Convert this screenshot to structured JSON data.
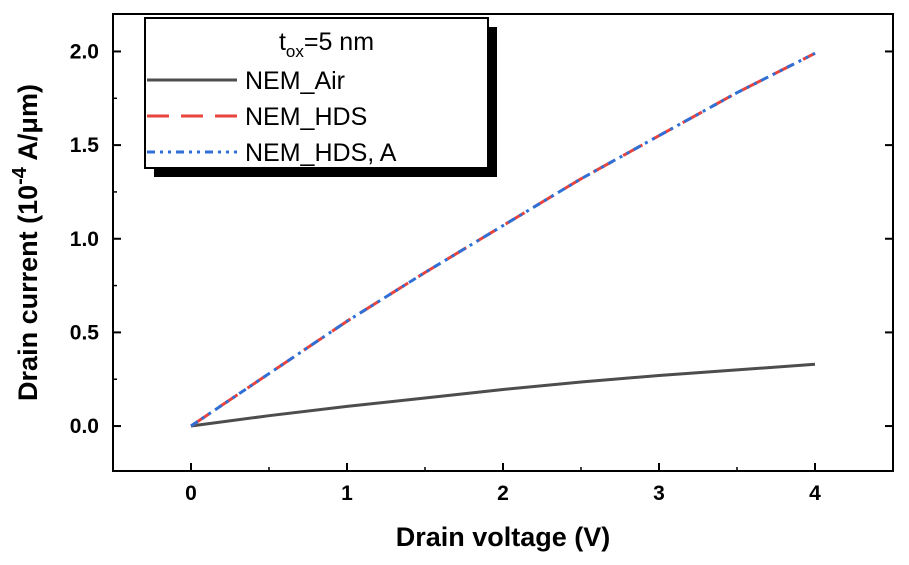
{
  "chart_data": {
    "type": "line",
    "xlabel": "Drain voltage (V)",
    "ylabel": {
      "prefix": "Drain current (10",
      "exponent": "-4",
      "suffix": " A/μm)"
    },
    "xlim": [
      -0.5,
      4.5
    ],
    "ylim": [
      -0.24,
      2.2
    ],
    "xticks": [
      "0",
      "1",
      "2",
      "3",
      "4"
    ],
    "yticks": [
      "0.0",
      "0.5",
      "1.0",
      "1.5",
      "2.0"
    ],
    "legend": {
      "title_base": "t",
      "title_sub": "ox",
      "title_rest": "=5 nm",
      "placement": "top-left"
    },
    "series": [
      {
        "name": "NEM_Air",
        "color": "#4d4d4d",
        "style": "solid",
        "x": [
          0,
          0.5,
          1,
          1.5,
          2,
          2.5,
          3,
          3.5,
          4
        ],
        "y": [
          0,
          0.055,
          0.105,
          0.15,
          0.195,
          0.235,
          0.27,
          0.3,
          0.33
        ]
      },
      {
        "name": "NEM_HDS",
        "color": "#e8433c",
        "style": "dashed",
        "x": [
          0,
          0.5,
          1,
          1.5,
          2,
          2.5,
          3,
          3.5,
          4
        ],
        "y": [
          0,
          0.28,
          0.56,
          0.82,
          1.07,
          1.32,
          1.55,
          1.78,
          1.99
        ]
      },
      {
        "name": "NEM_HDS, A",
        "color": "#2f6fd6",
        "style": "dashdotdot",
        "x": [
          0,
          0.5,
          1,
          1.5,
          2,
          2.5,
          3,
          3.5,
          4
        ],
        "y": [
          0,
          0.28,
          0.56,
          0.82,
          1.07,
          1.32,
          1.55,
          1.78,
          1.99
        ]
      }
    ]
  }
}
